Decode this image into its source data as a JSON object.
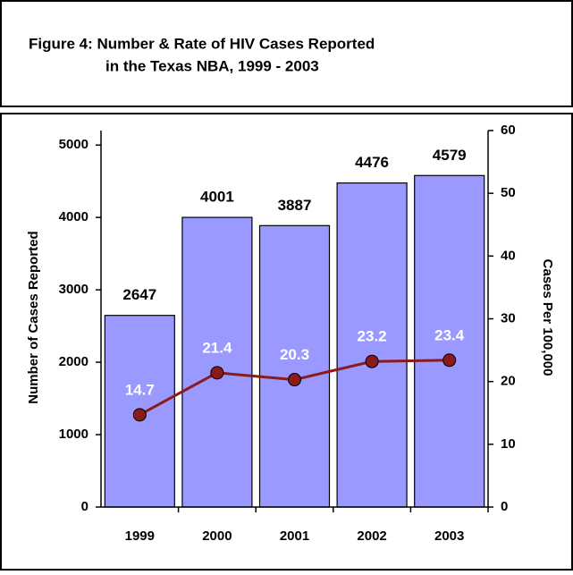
{
  "chart_data": {
    "type": "bar",
    "title": [
      "Figure 4: Number & Rate of HIV Cases Reported",
      "in the Texas NBA, 1999 - 2003"
    ],
    "categories": [
      "1999",
      "2000",
      "2001",
      "2002",
      "2003"
    ],
    "ylabel": "Number of Cases Reported",
    "y2label": "Cases Per 100,000",
    "ylim": [
      0,
      5200
    ],
    "yticks": [
      0,
      1000,
      2000,
      3000,
      4000,
      5000
    ],
    "y2lim": [
      0,
      60
    ],
    "y2ticks": [
      0,
      10,
      20,
      30,
      40,
      50,
      60
    ],
    "series": [
      {
        "name": "Number of Cases Reported",
        "type": "bar",
        "color": "#9999ff",
        "values": [
          2647,
          4001,
          3887,
          4476,
          4579
        ]
      },
      {
        "name": "Cases Per 100,000",
        "type": "line",
        "axis": "y2",
        "color": "#8b1a1a",
        "values": [
          14.7,
          21.4,
          20.3,
          23.2,
          23.4
        ]
      }
    ]
  }
}
